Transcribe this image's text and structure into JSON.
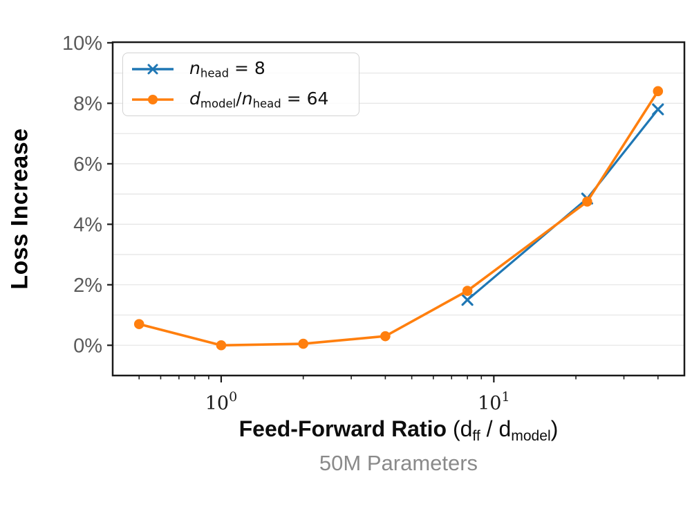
{
  "chart_data": {
    "type": "line",
    "x_scale": "log",
    "ylabel": "Loss Increase",
    "subtitle": "50M Parameters",
    "xlabel_plain": "Feed-Forward Ratio (dff / dmodel)",
    "xlabel_parts": [
      {
        "t": "Feed-Forward Ratio",
        "s": "bold"
      },
      {
        "t": " (d",
        "s": "plain"
      },
      {
        "t": "ff",
        "s": "sub"
      },
      {
        "t": " / d",
        "s": "plain"
      },
      {
        "t": "model",
        "s": "sub"
      },
      {
        "t": ")",
        "s": "plain"
      }
    ],
    "xlim": [
      0.4,
      50
    ],
    "ylim_percent": [
      -1.0,
      10.02
    ],
    "grid": "horizontal lines every 1%",
    "legend_position": "upper left",
    "x_major_ticks": [
      {
        "value": 1,
        "base": "10",
        "exp": "0"
      },
      {
        "value": 10,
        "base": "10",
        "exp": "1"
      }
    ],
    "x_minor_ticks": [
      0.5,
      0.6,
      0.7,
      0.8,
      0.9,
      2,
      3,
      4,
      5,
      6,
      7,
      8,
      9,
      20,
      30,
      40
    ],
    "y_ticks_percent": [
      0,
      2,
      4,
      6,
      8,
      10
    ],
    "y_tick_labels": [
      "0%",
      "2%",
      "4%",
      "6%",
      "8%",
      "10%"
    ],
    "gridline_values_percent": [
      0,
      1,
      2,
      3,
      4,
      5,
      6,
      7,
      8,
      9,
      10
    ],
    "series": [
      {
        "name": "n_head = 8",
        "color": "#1f77b4",
        "marker": "x",
        "line_width": 3.2,
        "label_parts": [
          {
            "t": "n",
            "s": "var"
          },
          {
            "t": "head",
            "s": "sub"
          },
          {
            "t": " = 8",
            "s": "plain"
          }
        ],
        "x": [
          8,
          22,
          40
        ],
        "y_percent": [
          1.5,
          4.85,
          7.8
        ]
      },
      {
        "name": "d_model/n_head = 64",
        "color": "#ff7f0e",
        "marker": "circle",
        "line_width": 3.6,
        "label_parts": [
          {
            "t": "d",
            "s": "var"
          },
          {
            "t": "model",
            "s": "sub"
          },
          {
            "t": "/",
            "s": "plain"
          },
          {
            "t": "n",
            "s": "var"
          },
          {
            "t": "head",
            "s": "sub"
          },
          {
            "t": " = 64",
            "s": "plain"
          }
        ],
        "x": [
          0.5,
          1,
          2,
          4,
          8,
          22,
          40
        ],
        "y_percent": [
          0.7,
          0.0,
          0.05,
          0.3,
          1.8,
          4.75,
          8.4
        ]
      }
    ],
    "colors": {
      "axis": "#1a1a1a",
      "gridline": "#e6e6e6",
      "y_tick_label": "#5a5a5a",
      "x_tick_label": "#1a1a1a",
      "subtitle": "#8a8a8a"
    }
  }
}
